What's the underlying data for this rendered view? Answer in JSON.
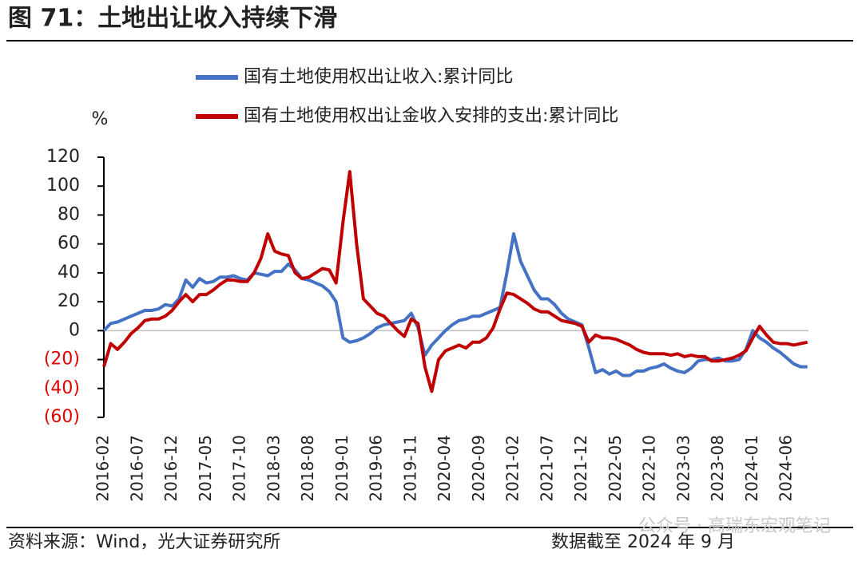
{
  "chart_data": {
    "type": "line",
    "title": "图 71：土地出让收入持续下滑",
    "y_unit": "%",
    "source": "资料来源：Wind，光大证券研究所",
    "note": "数据截至 2024 年 9 月",
    "watermark": "公众号 · 高瑞东宏观笔记",
    "categories": [
      "2016-02",
      null,
      null,
      null,
      null,
      "2016-07",
      null,
      null,
      null,
      null,
      "2016-12",
      null,
      null,
      null,
      null,
      "2017-05",
      null,
      null,
      null,
      null,
      "2017-10",
      null,
      null,
      null,
      null,
      "2018-03",
      null,
      null,
      null,
      null,
      "2018-08",
      null,
      null,
      null,
      null,
      "2019-01",
      null,
      null,
      null,
      null,
      "2019-06",
      null,
      null,
      null,
      null,
      "2019-11",
      null,
      null,
      null,
      null,
      "2020-04",
      null,
      null,
      null,
      null,
      "2020-09",
      null,
      null,
      null,
      null,
      "2021-02",
      null,
      null,
      null,
      null,
      "2021-07",
      null,
      null,
      null,
      null,
      "2021-12",
      null,
      null,
      null,
      null,
      "2022-05",
      null,
      null,
      null,
      null,
      "2022-10",
      null,
      null,
      null,
      null,
      "2023-03",
      null,
      null,
      null,
      null,
      "2023-08",
      null,
      null,
      null,
      null,
      "2024-01",
      null,
      null,
      null,
      null,
      "2024-06",
      null,
      null,
      null
    ],
    "series": [
      {
        "name": "国有土地使用权出让收入:累计同比",
        "color": "#4472c4",
        "values": [
          0,
          5,
          6,
          8,
          10,
          12,
          14,
          14,
          15,
          18,
          17,
          22,
          35,
          30,
          36,
          33,
          34,
          37,
          37,
          38,
          36,
          35,
          40,
          39,
          38,
          41,
          41,
          46,
          42,
          36,
          35,
          33,
          31,
          27,
          20,
          -5,
          -8,
          -7,
          -5,
          -2,
          2,
          4,
          5,
          6,
          7,
          12,
          2,
          -17,
          -10,
          -5,
          0,
          4,
          7,
          8,
          10,
          10,
          12,
          14,
          16,
          40,
          67,
          48,
          38,
          28,
          22,
          22,
          18,
          12,
          8,
          6,
          4,
          -12,
          -29,
          -27,
          -30,
          -28,
          -31,
          -31,
          -28,
          -28,
          -26,
          -25,
          -23,
          -26,
          -28,
          -29,
          -26,
          -21,
          -20,
          -20,
          -19,
          -21,
          -21,
          -20,
          -13,
          0,
          -5,
          -8,
          -12,
          -15,
          -19,
          -23,
          -25,
          -25
        ]
      },
      {
        "name": "国有土地使用权出让金收入安排的支出:累计同比",
        "color": "#c00000",
        "values": [
          -25,
          -9,
          -13,
          -8,
          -2,
          2,
          7,
          8,
          8,
          10,
          14,
          20,
          25,
          20,
          25,
          25,
          28,
          32,
          35,
          35,
          34,
          34,
          40,
          50,
          67,
          55,
          53,
          52,
          40,
          36,
          37,
          40,
          43,
          42,
          33,
          75,
          110,
          60,
          22,
          17,
          12,
          10,
          5,
          0,
          -4,
          8,
          5,
          -25,
          -42,
          -20,
          -14,
          -12,
          -10,
          -12,
          -8,
          -8,
          -5,
          2,
          15,
          26,
          25,
          22,
          19,
          15,
          13,
          13,
          10,
          7,
          6,
          5,
          3,
          -8,
          -3,
          -5,
          -5,
          -6,
          -8,
          -10,
          -13,
          -15,
          -16,
          -16,
          -16,
          -17,
          -16,
          -18,
          -17,
          -18,
          -18,
          -21,
          -21,
          -20,
          -19,
          -17,
          -14,
          -5,
          3,
          -3,
          -8,
          -9,
          -9,
          -10,
          -9,
          -8
        ]
      }
    ],
    "ylim": [
      -60,
      120
    ],
    "yticks": [
      120,
      100,
      80,
      60,
      40,
      20,
      0,
      {
        "value": -20,
        "label": "(20)"
      },
      {
        "value": -40,
        "label": "(40)"
      },
      {
        "value": -60,
        "label": "(60)"
      }
    ],
    "negative_tick_color": "#e00000",
    "legend": "top"
  }
}
